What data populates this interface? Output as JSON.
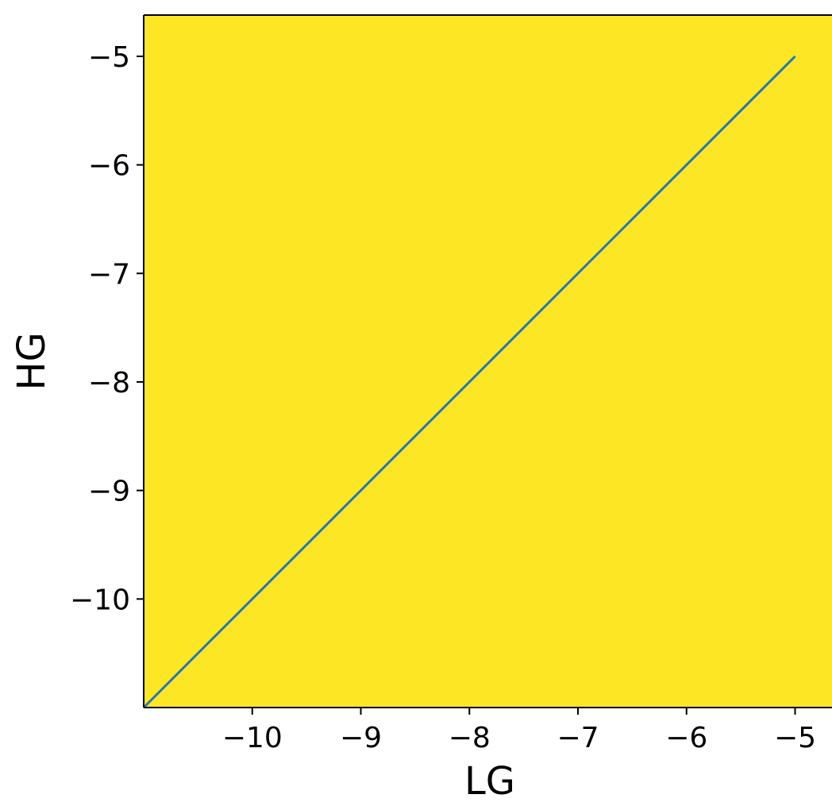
{
  "chart_data": {
    "type": "line",
    "title": "",
    "xlabel": "LG",
    "ylabel": "HG",
    "xlim": [
      -11,
      -4.66
    ],
    "ylim": [
      -11,
      -4.62
    ],
    "xticks": [
      -10,
      -9,
      -8,
      -7,
      -6,
      -5
    ],
    "yticks": [
      -10,
      -9,
      -8,
      -7,
      -6,
      -5
    ],
    "xtick_labels": [
      "−10",
      "−9",
      "−8",
      "−7",
      "−6",
      "−5"
    ],
    "ytick_labels": [
      "−10",
      "−9",
      "−8",
      "−7",
      "−6",
      "−5"
    ],
    "background_fill": "#fde725",
    "grid": false,
    "series": [
      {
        "color": "#2678b2",
        "x": [
          -11,
          -5
        ],
        "y": [
          -11,
          -5
        ]
      }
    ]
  }
}
